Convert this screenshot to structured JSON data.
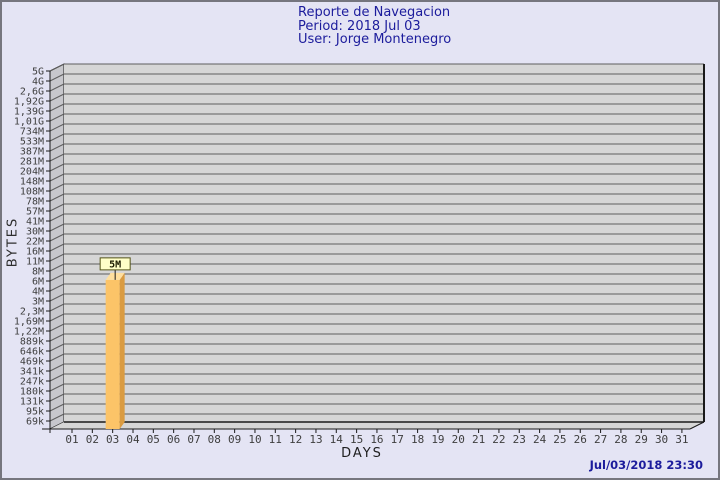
{
  "page": {
    "bg": "#E4E4F4",
    "border_color": "#76767E"
  },
  "header": {
    "title": "Reporte de Navegacion",
    "period": "Period: 2018 Jul 03",
    "user": "User: Jorge Montenegro",
    "color": "#1C1C9C"
  },
  "footer": {
    "timestamp": "Jul/03/2018 23:30",
    "color": "#1C1C9C"
  },
  "chart_data": {
    "type": "bar",
    "title": "Reporte de Navegacion",
    "subtitle": "Period: 2018 Jul 03",
    "user_line": "User: Jorge Montenegro",
    "xlabel": "DAYS",
    "ylabel": "BYTES",
    "y_scale": "log",
    "y_min_bytes": 70656,
    "y_max_bytes": 5368709120,
    "y_tick_labels_top_to_bottom": [
      "5G",
      "4G",
      "2,6G",
      "1,92G",
      "1,39G",
      "1,01G",
      "734M",
      "533M",
      "387M",
      "281M",
      "204M",
      "148M",
      "108M",
      "78M",
      "57M",
      "41M",
      "30M",
      "22M",
      "16M",
      "11M",
      "8M",
      "6M",
      "4M",
      "3M",
      "2,3M",
      "1,69M",
      "1,22M",
      "889k",
      "646k",
      "469k",
      "341k",
      "247k",
      "180k",
      "131k",
      "95k",
      "69k"
    ],
    "x_tick_labels": [
      "01",
      "02",
      "03",
      "04",
      "05",
      "06",
      "07",
      "08",
      "09",
      "10",
      "11",
      "12",
      "13",
      "14",
      "15",
      "16",
      "17",
      "18",
      "19",
      "20",
      "21",
      "22",
      "23",
      "24",
      "25",
      "26",
      "27",
      "28",
      "29",
      "30",
      "31"
    ],
    "bars": [
      {
        "day": 3,
        "label": "5M",
        "value_bytes": 5242880
      }
    ],
    "legend": null,
    "grid": true,
    "colors": {
      "plot_bg": "#D6D6D6",
      "wall": "#C7C7CC",
      "grid": "#5E5E5E",
      "frame": "#1A1A1A",
      "tick_text": "#3E3E3E",
      "bar_face": "#FCC468",
      "bar_side": "#DA9B40",
      "bar_top": "#FFDF9E",
      "annotation_bg": "#FFFFC8",
      "annotation_border": "#55551A",
      "annotation_text": "#1A1A00"
    }
  }
}
